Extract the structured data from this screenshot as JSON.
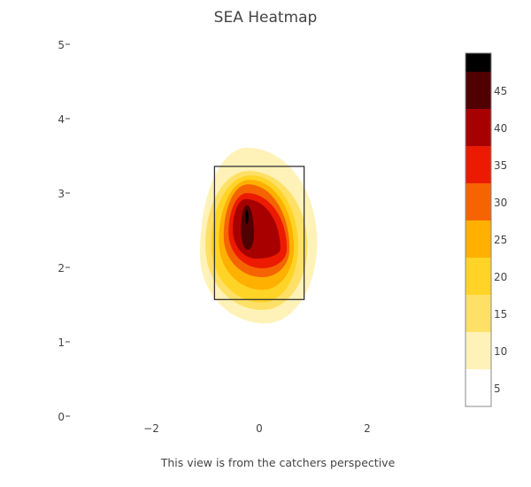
{
  "chart_data": {
    "type": "contour",
    "title": "SEA Heatmap",
    "xlabel": "This view is from the catchers perspective",
    "ylabel": "",
    "xlim": [
      -3.5,
      3.5
    ],
    "ylim": [
      0,
      5
    ],
    "x_ticks": [
      "−2",
      "0",
      "2"
    ],
    "x_tick_values": [
      -2,
      0,
      2
    ],
    "y_ticks": [
      "0",
      "1",
      "2",
      "3",
      "4",
      "5"
    ],
    "y_tick_values": [
      0,
      1,
      2,
      3,
      4,
      5
    ],
    "strike_zone": {
      "x": [
        -0.83,
        0.83
      ],
      "y": [
        1.58,
        3.37
      ]
    },
    "colorbar": {
      "range": [
        2.5,
        47.5
      ],
      "ticks": [
        "5",
        "10",
        "15",
        "20",
        "25",
        "30",
        "35",
        "40",
        "45"
      ],
      "tick_values": [
        5,
        10,
        15,
        20,
        25,
        30,
        35,
        40,
        45
      ],
      "bands": [
        {
          "from": 2.5,
          "to": 7.5,
          "color": "#ffffff"
        },
        {
          "from": 7.5,
          "to": 12.5,
          "color": "#fff2b8"
        },
        {
          "from": 12.5,
          "to": 17.5,
          "color": "#ffe066"
        },
        {
          "from": 17.5,
          "to": 22.5,
          "color": "#ffd426"
        },
        {
          "from": 22.5,
          "to": 27.5,
          "color": "#ffb000"
        },
        {
          "from": 27.5,
          "to": 32.5,
          "color": "#f56400"
        },
        {
          "from": 32.5,
          "to": 37.5,
          "color": "#ec1a00"
        },
        {
          "from": 37.5,
          "to": 42.5,
          "color": "#a80000"
        },
        {
          "from": 42.5,
          "to": 47.5,
          "color": "#500000"
        },
        {
          "from": 47.5,
          "to": 50,
          "color": "#000000"
        }
      ]
    },
    "contours": [
      {
        "level": 7.5,
        "color": "#fff2b8",
        "top": [
          -0.23,
          3.62
        ],
        "right": [
          1.07,
          2.35
        ],
        "bottom": [
          0.11,
          1.26
        ],
        "left": [
          -1.1,
          2.2
        ]
      },
      {
        "level": 12.5,
        "color": "#ffe066",
        "top": [
          -0.2,
          3.31
        ],
        "right": [
          0.89,
          2.3
        ],
        "bottom": [
          0.06,
          1.44
        ],
        "left": [
          -1.0,
          2.31
        ]
      },
      {
        "level": 17.5,
        "color": "#ffd426",
        "top": [
          -0.16,
          3.25
        ],
        "right": [
          0.72,
          2.3
        ],
        "bottom": [
          0.06,
          1.54
        ],
        "left": [
          -0.89,
          2.31
        ]
      },
      {
        "level": 22.5,
        "color": "#ffb000",
        "top": [
          -0.18,
          3.19
        ],
        "right": [
          0.64,
          2.28
        ],
        "bottom": [
          0.06,
          1.71
        ],
        "left": [
          -0.75,
          2.36
        ]
      },
      {
        "level": 27.5,
        "color": "#f56400",
        "top": [
          -0.21,
          3.13
        ],
        "right": [
          0.56,
          2.26
        ],
        "bottom": [
          0.06,
          1.88
        ],
        "left": [
          -0.66,
          2.43
        ]
      },
      {
        "level": 32.5,
        "color": "#ec1a00",
        "top": [
          -0.23,
          3.01
        ],
        "right": [
          0.51,
          2.26
        ],
        "bottom": [
          0.06,
          2.0
        ],
        "left": [
          -0.57,
          2.48
        ]
      },
      {
        "level": 37.5,
        "color": "#a80000",
        "top": [
          -0.25,
          2.93
        ],
        "right": [
          0.39,
          2.26
        ],
        "bottom": [
          -0.05,
          2.13
        ],
        "left": [
          -0.49,
          2.52
        ]
      },
      {
        "level": 42.5,
        "color": "#500000",
        "top": [
          -0.23,
          2.85
        ],
        "right": [
          -0.1,
          2.45
        ],
        "bottom": [
          -0.21,
          2.25
        ],
        "left": [
          -0.34,
          2.52
        ]
      },
      {
        "level": 47.5,
        "color": "#000000",
        "top": [
          -0.23,
          2.79
        ],
        "right": [
          -0.2,
          2.68
        ],
        "bottom": [
          -0.23,
          2.6
        ],
        "left": [
          -0.26,
          2.68
        ]
      }
    ]
  }
}
